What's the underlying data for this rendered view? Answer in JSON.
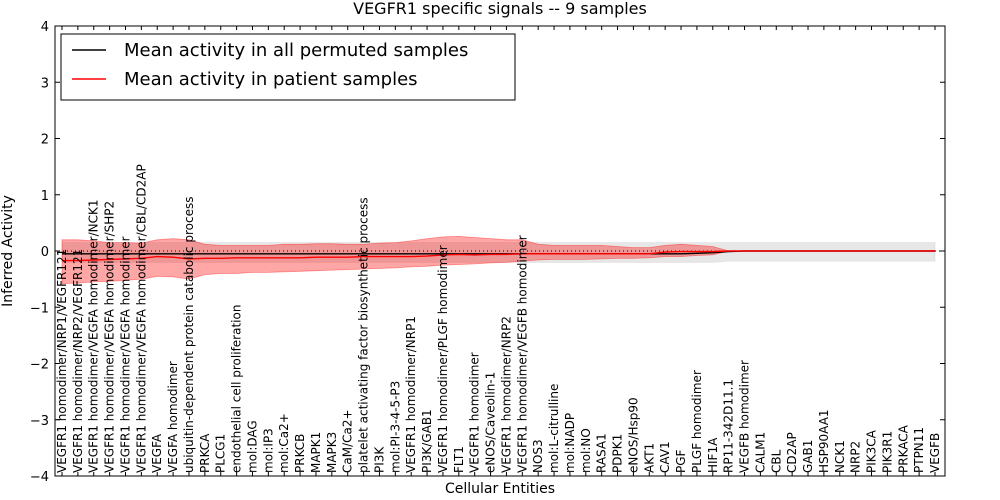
{
  "chart_data": {
    "type": "line",
    "title": "VEGFR1 specific signals -- 9 samples",
    "xlabel": "Cellular Entities",
    "ylabel": "Inferred Activity",
    "ylim": [
      -4,
      4
    ],
    "yticks": [
      4,
      3,
      2,
      1,
      0,
      -1,
      -2,
      -3,
      -4
    ],
    "ytick_labels": [
      "4",
      "3",
      "2",
      "1",
      "0",
      "−1",
      "−2",
      "−3",
      "−4"
    ],
    "reference_line": 0,
    "legend_position": "top-left",
    "categories": [
      "VEGFR1 homodimer/NRP1/VEGFR121",
      "VEGFR1 homodimer/NRP2/VEGFR121",
      "VEGFR1 homodimer/VEGFA homodimer/NCK1",
      "VEGFR1 homodimer/VEGFA homodimer/SHP2",
      "VEGFR1 homodimer/VEGFA homodimer",
      "VEGFR1 homodimer/VEGFA homodimer/CBL/CD2AP",
      "VEGFA",
      "VEGFA homodimer",
      "ubiquitin-dependent protein catabolic process",
      "PRKCA",
      "PLCG1",
      "endothelial cell proliferation",
      "mol:DAG",
      "mol:IP3",
      "mol:Ca2+",
      "PRKCB",
      "MAPK1",
      "MAPK3",
      "CaM/Ca2+",
      "platelet activating factor biosynthetic process",
      "PI3K",
      "mol:PI-3-4-5-P3",
      "VEGFR1 homodimer/NRP1",
      "PI3K/GAB1",
      "VEGFR1 homodimer/PLGF homodimer",
      "FLT1",
      "VEGFR1 homodimer",
      "eNOS/Caveolin-1",
      "VEGFR1 homodimer/NRP2",
      "VEGFR1 homodimer/VEGFB homodimer",
      "NOS3",
      "mol:L-citrulline",
      "mol:NADP",
      "mol:NO",
      "RASA1",
      "PDPK1",
      "eNOS/Hsp90",
      "AKT1",
      "CAV1",
      "PGF",
      "PLGF homodimer",
      "HIF1A",
      "RP11-342D11.1",
      "VEGFB homodimer",
      "CALM1",
      "CBL",
      "CD2AP",
      "GAB1",
      "HSP90AA1",
      "NCK1",
      "NRP2",
      "PIK3CA",
      "PIK3R1",
      "PRKACA",
      "PTPN11",
      "VEGFB"
    ],
    "series": [
      {
        "name": "Mean activity in all permuted samples",
        "color": "#000000",
        "values": [
          -0.05,
          -0.05,
          -0.05,
          -0.05,
          -0.05,
          -0.05,
          -0.05,
          -0.05,
          -0.05,
          -0.05,
          -0.05,
          -0.05,
          -0.05,
          -0.05,
          -0.05,
          -0.05,
          -0.05,
          -0.05,
          -0.05,
          -0.05,
          -0.05,
          -0.05,
          -0.05,
          -0.05,
          -0.05,
          -0.05,
          -0.05,
          -0.05,
          -0.05,
          -0.05,
          -0.05,
          -0.05,
          -0.05,
          -0.05,
          -0.05,
          -0.05,
          -0.05,
          -0.05,
          -0.05,
          -0.05,
          -0.04,
          -0.03,
          -0.01,
          0.0,
          0.0,
          0.0,
          0.0,
          0.0,
          0.0,
          0.0,
          0.0,
          0.0,
          0.0,
          0.0,
          0.0,
          0.0
        ],
        "band_low": [
          -0.2,
          -0.2,
          -0.2,
          -0.2,
          -0.2,
          -0.2,
          -0.2,
          -0.2,
          -0.2,
          -0.2,
          -0.2,
          -0.2,
          -0.2,
          -0.2,
          -0.2,
          -0.2,
          -0.2,
          -0.2,
          -0.2,
          -0.2,
          -0.2,
          -0.2,
          -0.2,
          -0.2,
          -0.2,
          -0.2,
          -0.2,
          -0.2,
          -0.2,
          -0.2,
          -0.2,
          -0.2,
          -0.2,
          -0.2,
          -0.2,
          -0.2,
          -0.2,
          -0.2,
          -0.2,
          -0.2,
          -0.2,
          -0.2,
          -0.18,
          -0.18,
          -0.18,
          -0.18,
          -0.18,
          -0.18,
          -0.18,
          -0.18,
          -0.18,
          -0.18,
          -0.18,
          -0.18,
          -0.18,
          -0.18
        ],
        "band_high": [
          0.15,
          0.15,
          0.15,
          0.15,
          0.15,
          0.15,
          0.15,
          0.15,
          0.15,
          0.15,
          0.15,
          0.15,
          0.15,
          0.15,
          0.15,
          0.15,
          0.15,
          0.15,
          0.15,
          0.15,
          0.15,
          0.15,
          0.15,
          0.15,
          0.15,
          0.15,
          0.15,
          0.15,
          0.15,
          0.15,
          0.15,
          0.15,
          0.15,
          0.15,
          0.15,
          0.15,
          0.15,
          0.15,
          0.15,
          0.15,
          0.15,
          0.15,
          0.15,
          0.15,
          0.15,
          0.15,
          0.15,
          0.15,
          0.15,
          0.15,
          0.15,
          0.15,
          0.15,
          0.15,
          0.15,
          0.15
        ],
        "band_color": "#d3d3d3"
      },
      {
        "name": "Mean activity in patient samples",
        "color": "#ff0000",
        "values": [
          -0.17,
          -0.17,
          -0.16,
          -0.15,
          -0.14,
          -0.13,
          -0.1,
          -0.11,
          -0.14,
          -0.13,
          -0.13,
          -0.12,
          -0.12,
          -0.12,
          -0.12,
          -0.12,
          -0.11,
          -0.11,
          -0.11,
          -0.1,
          -0.1,
          -0.1,
          -0.1,
          -0.09,
          -0.07,
          -0.06,
          -0.07,
          -0.06,
          -0.06,
          -0.05,
          -0.05,
          -0.05,
          -0.05,
          -0.05,
          -0.05,
          -0.05,
          -0.05,
          -0.05,
          -0.02,
          -0.01,
          -0.01,
          -0.01,
          0.0,
          0.0,
          0.0,
          0.0,
          0.0,
          0.0,
          0.0,
          0.0,
          0.0,
          0.0,
          0.0,
          0.0,
          0.0,
          0.0
        ],
        "band_low": [
          -0.58,
          -0.57,
          -0.55,
          -0.54,
          -0.52,
          -0.5,
          -0.45,
          -0.46,
          -0.5,
          -0.42,
          -0.4,
          -0.4,
          -0.38,
          -0.38,
          -0.37,
          -0.36,
          -0.35,
          -0.34,
          -0.33,
          -0.32,
          -0.31,
          -0.3,
          -0.28,
          -0.27,
          -0.25,
          -0.24,
          -0.23,
          -0.21,
          -0.2,
          -0.18,
          -0.16,
          -0.15,
          -0.15,
          -0.15,
          -0.14,
          -0.13,
          -0.13,
          -0.12,
          -0.1,
          -0.1,
          -0.08,
          -0.07,
          0.0,
          0.0,
          0.0,
          0.0,
          0.0,
          0.0,
          0.0,
          0.0,
          0.0,
          0.0,
          0.0,
          0.0,
          0.0,
          0.0
        ],
        "band_high": [
          0.2,
          0.2,
          0.18,
          0.15,
          0.15,
          0.14,
          0.2,
          0.22,
          0.2,
          0.12,
          0.1,
          0.1,
          0.1,
          0.1,
          0.12,
          0.12,
          0.13,
          0.13,
          0.12,
          0.12,
          0.14,
          0.15,
          0.18,
          0.22,
          0.25,
          0.26,
          0.24,
          0.22,
          0.2,
          0.2,
          0.12,
          0.1,
          0.1,
          0.1,
          0.1,
          0.08,
          0.06,
          0.06,
          0.1,
          0.12,
          0.1,
          0.08,
          0.0,
          0.0,
          0.0,
          0.0,
          0.0,
          0.0,
          0.0,
          0.0,
          0.0,
          0.0,
          0.0,
          0.0,
          0.0,
          0.0
        ],
        "band_color": "#ff0000"
      }
    ]
  }
}
